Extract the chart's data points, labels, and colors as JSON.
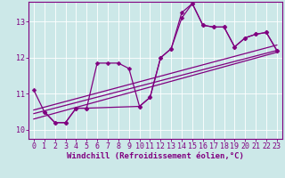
{
  "xlabel": "Windchill (Refroidissement éolien,°C)",
  "background_color": "#cce8e8",
  "line_color": "#800080",
  "grid_color": "#ffffff",
  "xlim": [
    -0.5,
    23.5
  ],
  "ylim": [
    9.75,
    13.55
  ],
  "xticks": [
    0,
    1,
    2,
    3,
    4,
    5,
    6,
    7,
    8,
    9,
    10,
    11,
    12,
    13,
    14,
    15,
    16,
    17,
    18,
    19,
    20,
    21,
    22,
    23
  ],
  "yticks": [
    10,
    11,
    12,
    13
  ],
  "line1": {
    "x": [
      0,
      1,
      2,
      3,
      4,
      5,
      6,
      7,
      8,
      9,
      10,
      11,
      12,
      13,
      14,
      15,
      16,
      17,
      18,
      19,
      20,
      21,
      22,
      23
    ],
    "y": [
      11.1,
      10.5,
      10.2,
      10.2,
      10.6,
      10.6,
      11.85,
      11.85,
      11.85,
      11.7,
      10.65,
      10.9,
      12.0,
      12.25,
      13.25,
      13.5,
      12.9,
      12.85,
      12.85,
      12.3,
      12.55,
      12.65,
      12.7,
      12.2
    ]
  },
  "line2": {
    "x": [
      1,
      2,
      3,
      4,
      5,
      10,
      11,
      12,
      13,
      14,
      15,
      16,
      17,
      18,
      19,
      20,
      21,
      22,
      23
    ],
    "y": [
      10.5,
      10.2,
      10.2,
      10.6,
      10.6,
      10.65,
      10.9,
      12.0,
      12.25,
      13.1,
      13.5,
      12.9,
      12.85,
      12.85,
      12.3,
      12.55,
      12.65,
      12.7,
      12.2
    ]
  },
  "straight_lines": [
    {
      "x": [
        0,
        23
      ],
      "y": [
        10.45,
        12.2
      ]
    },
    {
      "x": [
        0,
        23
      ],
      "y": [
        10.3,
        12.15
      ]
    },
    {
      "x": [
        0,
        23
      ],
      "y": [
        10.55,
        12.35
      ]
    }
  ],
  "marker": "D",
  "markersize": 2.5,
  "linewidth": 0.9,
  "xlabel_fontsize": 6.5,
  "tick_fontsize": 6
}
